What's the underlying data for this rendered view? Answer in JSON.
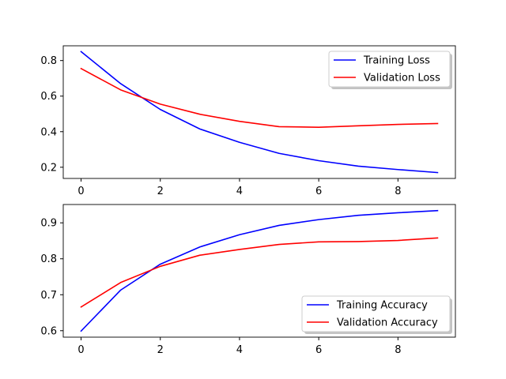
{
  "chart_data": [
    {
      "type": "line",
      "title": "",
      "xlabel": "",
      "ylabel": "",
      "xlim": [
        -0.45,
        9.45
      ],
      "ylim": [
        0.137,
        0.883
      ],
      "xticks": [
        0,
        2,
        4,
        6,
        8
      ],
      "xtick_labels": [
        "0",
        "2",
        "4",
        "6",
        "8"
      ],
      "yticks": [
        0.2,
        0.4,
        0.6,
        0.8
      ],
      "ytick_labels": [
        "0.2",
        "0.4",
        "0.6",
        "0.8"
      ],
      "grid": false,
      "legend_position": "top-right",
      "x": [
        0,
        1,
        2,
        3,
        4,
        5,
        6,
        7,
        8,
        9
      ],
      "series": [
        {
          "name": "Training Loss",
          "color": "#0000ff",
          "values": [
            0.85,
            0.67,
            0.525,
            0.415,
            0.34,
            0.278,
            0.237,
            0.206,
            0.187,
            0.17
          ]
        },
        {
          "name": "Validation Loss",
          "color": "#ff0000",
          "values": [
            0.755,
            0.635,
            0.555,
            0.498,
            0.458,
            0.428,
            0.425,
            0.433,
            0.441,
            0.446
          ]
        }
      ]
    },
    {
      "type": "line",
      "title": "",
      "xlabel": "",
      "ylabel": "",
      "xlim": [
        -0.45,
        9.45
      ],
      "ylim": [
        0.582,
        0.951
      ],
      "xticks": [
        0,
        2,
        4,
        6,
        8
      ],
      "xtick_labels": [
        "0",
        "2",
        "4",
        "6",
        "8"
      ],
      "yticks": [
        0.6,
        0.7,
        0.8,
        0.9
      ],
      "ytick_labels": [
        "0.6",
        "0.7",
        "0.8",
        "0.9"
      ],
      "grid": false,
      "legend_position": "bottom-right",
      "x": [
        0,
        1,
        2,
        3,
        4,
        5,
        6,
        7,
        8,
        9
      ],
      "series": [
        {
          "name": "Training Accuracy",
          "color": "#0000ff",
          "values": [
            0.599,
            0.713,
            0.785,
            0.833,
            0.867,
            0.893,
            0.909,
            0.921,
            0.928,
            0.934
          ]
        },
        {
          "name": "Validation Accuracy",
          "color": "#ff0000",
          "values": [
            0.666,
            0.734,
            0.779,
            0.81,
            0.826,
            0.84,
            0.847,
            0.848,
            0.851,
            0.858
          ]
        }
      ]
    }
  ]
}
